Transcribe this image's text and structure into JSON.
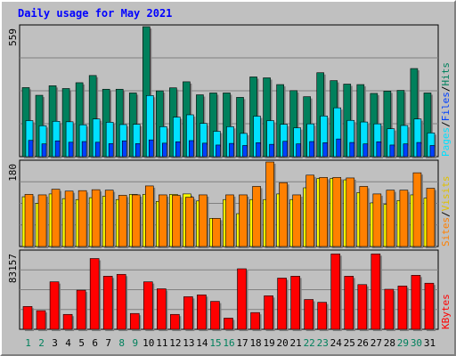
{
  "chart_data": {
    "type": "bar",
    "title": "Daily usage for May 2021",
    "categories": [
      "1",
      "2",
      "3",
      "4",
      "5",
      "6",
      "7",
      "8",
      "9",
      "10",
      "11",
      "12",
      "13",
      "14",
      "15",
      "16",
      "17",
      "18",
      "19",
      "20",
      "21",
      "22",
      "23",
      "24",
      "25",
      "26",
      "27",
      "28",
      "29",
      "30",
      "31"
    ],
    "weekend_days": [
      "1",
      "2",
      "8",
      "9",
      "15",
      "16",
      "22",
      "23",
      "29",
      "30"
    ],
    "panels": [
      {
        "name": "hits-files-pages",
        "ymax_label": "559",
        "ylim": [
          0,
          559
        ],
        "legend": [
          "Pages",
          "/",
          "Files",
          "/",
          "Hits"
        ],
        "series": [
          {
            "name": "Hits",
            "color": "#00805c",
            "values": [
              297,
              264,
              305,
              293,
              318,
              349,
              290,
              290,
              274,
              559,
              283,
              296,
              322,
              266,
              274,
              274,
              255,
              343,
              339,
              310,
              284,
              258,
              361,
              327,
              312,
              310,
              272,
              282,
              285,
              379,
              274
            ]
          },
          {
            "name": "Files",
            "color": "#00e0ff",
            "values": [
              155,
              133,
              152,
              150,
              137,
              162,
              148,
              138,
              139,
              263,
              129,
              170,
              180,
              143,
              109,
              129,
              100,
              174,
              155,
              139,
              124,
              141,
              175,
              210,
              156,
              149,
              141,
              120,
              134,
              162,
              102
            ]
          },
          {
            "name": "Pages",
            "color": "#0040ff",
            "values": [
              70,
              55,
              68,
              62,
              65,
              62,
              56,
              68,
              56,
              72,
              58,
              64,
              69,
              58,
              50,
              57,
              48,
              60,
              53,
              66,
              55,
              65,
              60,
              76,
              61,
              55,
              64,
              50,
              55,
              61,
              48
            ]
          }
        ]
      },
      {
        "name": "visits-sites",
        "ymax_label": "180",
        "ylim": [
          0,
          180
        ],
        "legend": [
          "Sites",
          "/",
          "Visits"
        ],
        "series": [
          {
            "name": "Sites",
            "color": "#ff8000",
            "values": [
              111,
              110,
              122,
              118,
              119,
              121,
              120,
              109,
              110,
              129,
              110,
              109,
              105,
              110,
              60,
              110,
              110,
              128,
              180,
              136,
              110,
              152,
              147,
              147,
              146,
              128,
              112,
              120,
              120,
              157,
              124
            ]
          },
          {
            "name": "Visits",
            "color": "#ffff00",
            "values": [
              106,
              92,
              112,
              102,
              100,
              104,
              107,
              100,
              111,
              111,
              96,
              111,
              112,
              97,
              60,
              100,
              70,
              100,
              100,
              112,
              100,
              125,
              145,
              145,
              142,
              115,
              93,
              90,
              98,
              110,
              103
            ]
          }
        ]
      },
      {
        "name": "kbytes",
        "ymax_label": "83157",
        "ylim": [
          0,
          83157
        ],
        "legend": [
          "KBytes"
        ],
        "series": [
          {
            "name": "KBytes",
            "color": "#ff0000",
            "values": [
              24500,
              20000,
              51000,
              16000,
              42000,
              76000,
              57000,
              59000,
              17000,
              51000,
              43500,
              16000,
              35000,
              37000,
              30000,
              12000,
              65000,
              18000,
              36000,
              55000,
              57000,
              32000,
              29000,
              81000,
              57000,
              48000,
              81000,
              43000,
              46500,
              58000,
              49500
            ]
          }
        ]
      }
    ]
  }
}
